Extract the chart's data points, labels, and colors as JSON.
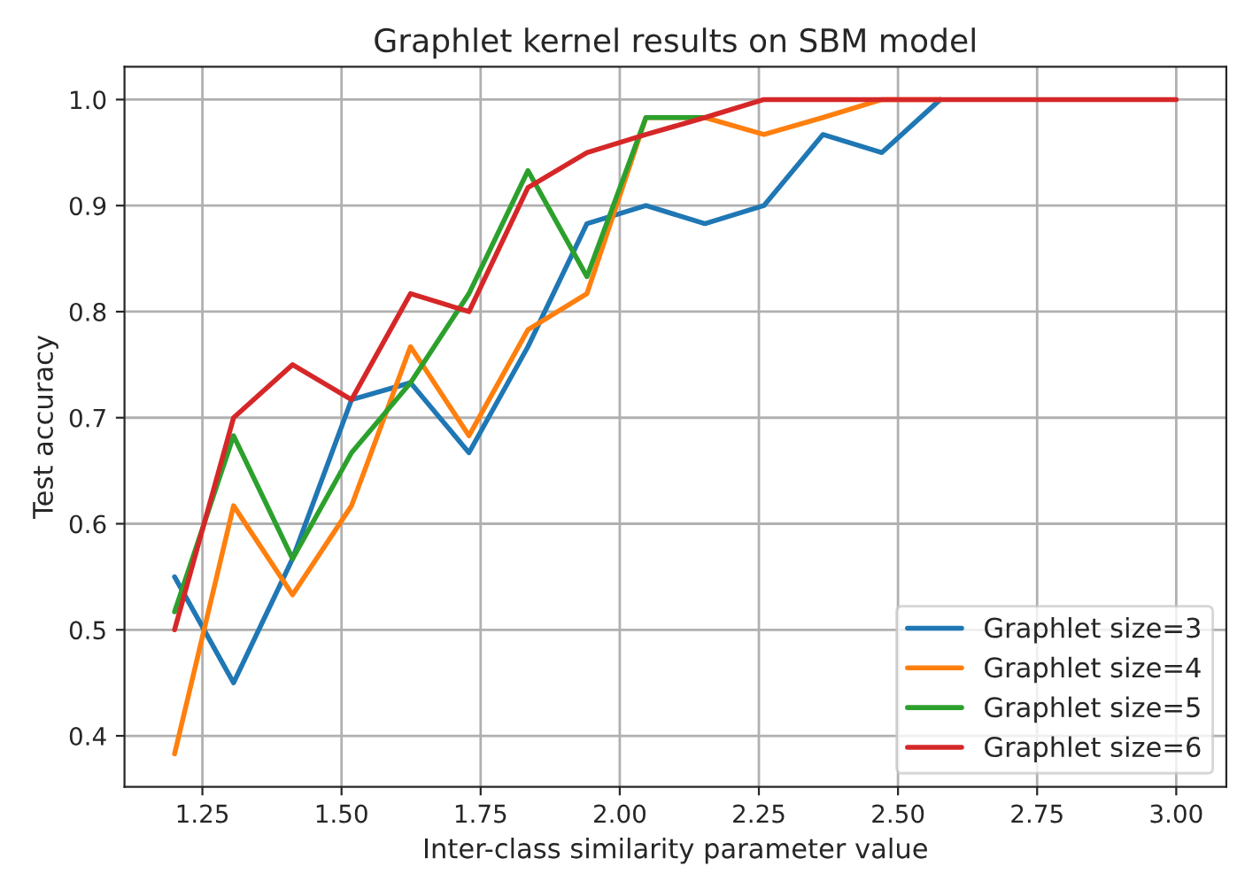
{
  "chart_data": {
    "type": "line",
    "title": "Graphlet kernel results on SBM model",
    "xlabel": "Inter-class similarity parameter value",
    "ylabel": "Test accuracy",
    "x": [
      1.2,
      1.306,
      1.412,
      1.518,
      1.624,
      1.729,
      1.835,
      1.941,
      2.047,
      2.153,
      2.259,
      2.365,
      2.471,
      2.576,
      2.682,
      2.788,
      2.894,
      3.0
    ],
    "series": [
      {
        "name": "Graphlet size=3",
        "color": "#1f77b4",
        "values": [
          0.55,
          0.45,
          0.567,
          0.717,
          0.733,
          0.667,
          0.767,
          0.883,
          0.9,
          0.883,
          0.9,
          0.967,
          0.95,
          1.0,
          null,
          null,
          null,
          null
        ]
      },
      {
        "name": "Graphlet size=4",
        "color": "#ff7f0e",
        "values": [
          0.383,
          0.617,
          0.533,
          0.617,
          0.767,
          0.683,
          0.783,
          0.817,
          0.983,
          0.983,
          0.967,
          0.983,
          1.0,
          1.0,
          null,
          null,
          null,
          null
        ]
      },
      {
        "name": "Graphlet size=5",
        "color": "#2ca02c",
        "values": [
          0.517,
          0.683,
          0.567,
          0.667,
          0.733,
          0.817,
          0.933,
          0.833,
          0.983,
          0.983,
          null,
          null,
          null,
          null,
          null,
          null,
          null,
          null
        ]
      },
      {
        "name": "Graphlet size=6",
        "color": "#d62728",
        "values": [
          0.5,
          0.7,
          0.75,
          0.717,
          0.817,
          0.8,
          0.917,
          0.95,
          0.967,
          0.983,
          1.0,
          1.0,
          1.0,
          1.0,
          1.0,
          1.0,
          1.0,
          1.0
        ]
      }
    ],
    "xlim": [
      1.11,
      3.09
    ],
    "ylim": [
      0.352,
      1.031
    ],
    "xticks": [
      1.25,
      {
        "value": 1.5,
        "label": "1.50"
      },
      1.75,
      {
        "value": 2,
        "label": "2.00"
      },
      2.25,
      {
        "value": 2.5,
        "label": "2.50"
      },
      2.75,
      {
        "value": 3,
        "label": "3.00"
      }
    ],
    "yticks": [
      0.4,
      0.5,
      0.6,
      0.7,
      0.8,
      0.9,
      {
        "value": 1,
        "label": "1.0"
      }
    ],
    "grid": true,
    "legend": "lower right"
  }
}
